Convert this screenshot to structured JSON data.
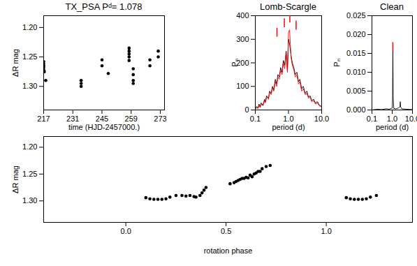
{
  "chart_data": [
    {
      "type": "scatter",
      "title": "TX_PSA Pᵈ= 1.078",
      "x_label": "time (HJD-2457000.)",
      "y_label": "ΔR mag",
      "marker": "circle",
      "color": "#000000",
      "xlim": [
        217,
        275
      ],
      "ylim": [
        1.34,
        1.18
      ],
      "xticks": [
        217,
        231,
        245,
        259,
        273
      ],
      "yticks": [
        {
          "value": 1.2,
          "label": "1.20"
        },
        {
          "value": 1.25,
          "label": "1.25"
        },
        {
          "value": 1.3,
          "label": "1.30"
        }
      ],
      "x": [
        217,
        217,
        217,
        217,
        217,
        217.3,
        218,
        235,
        235,
        235,
        245,
        245,
        248,
        258,
        258,
        258,
        258,
        258,
        260,
        260,
        260,
        260,
        268,
        268,
        272,
        272
      ],
      "values": [
        1.258,
        1.262,
        1.265,
        1.268,
        1.272,
        1.275,
        1.29,
        1.29,
        1.295,
        1.3,
        1.255,
        1.265,
        1.278,
        1.235,
        1.24,
        1.245,
        1.25,
        1.256,
        1.27,
        1.28,
        1.29,
        1.295,
        1.255,
        1.265,
        1.24,
        1.25
      ]
    },
    {
      "type": "line",
      "title": "Lomb-Scargle",
      "x_label": "period (d)",
      "y_label": "Pₙ",
      "log": "x",
      "xlim": [
        0.1,
        10
      ],
      "ylim": [
        0,
        400
      ],
      "xticks": [
        {
          "value": 0.1,
          "label": "0.1"
        },
        {
          "value": 1,
          "label": "1.0"
        },
        {
          "value": 10,
          "label": "10.0"
        }
      ],
      "yticks": [
        0,
        100,
        200,
        300,
        400
      ],
      "x": [
        0.1,
        0.11,
        0.12,
        0.13,
        0.14,
        0.15,
        0.17,
        0.19,
        0.2,
        0.22,
        0.25,
        0.27,
        0.3,
        0.33,
        0.36,
        0.4,
        0.44,
        0.48,
        0.53,
        0.58,
        0.64,
        0.7,
        0.77,
        0.85,
        0.93,
        1.0,
        1.08,
        1.2,
        1.3,
        1.45,
        1.6,
        1.8,
        2.0,
        2.2,
        2.5,
        2.8,
        3.2,
        3.6,
        4.0,
        4.5,
        5.0,
        5.7,
        6.5,
        7.5,
        8.5,
        10.0
      ],
      "series": [
        {
          "color": "#000000",
          "values": [
            5,
            15,
            8,
            25,
            12,
            30,
            20,
            45,
            35,
            60,
            50,
            80,
            70,
            100,
            85,
            130,
            110,
            150,
            140,
            180,
            160,
            210,
            190,
            250,
            170,
            300,
            280,
            230,
            200,
            180,
            150,
            160,
            120,
            130,
            90,
            100,
            70,
            80,
            55,
            60,
            40,
            45,
            30,
            35,
            20,
            15
          ]
        },
        {
          "color": "#ff0000",
          "values": [
            3,
            10,
            6,
            20,
            10,
            25,
            18,
            40,
            30,
            55,
            45,
            75,
            65,
            95,
            80,
            120,
            100,
            140,
            130,
            170,
            150,
            200,
            175,
            240,
            160,
            330,
            340,
            220,
            190,
            170,
            140,
            150,
            110,
            120,
            80,
            90,
            65,
            70,
            50,
            55,
            35,
            40,
            25,
            30,
            18,
            12
          ]
        }
      ],
      "peaks": {
        "color": "#ff0000",
        "x": [
          0.45,
          0.75,
          1.1,
          1.7
        ],
        "y": [
          330,
          370,
          390,
          360
        ]
      }
    },
    {
      "type": "line",
      "title": "Clean",
      "x_label": "period (d)",
      "y_label": "Pₙ",
      "log": "x",
      "xlim": [
        0.1,
        10
      ],
      "ylim": [
        0,
        0.025
      ],
      "xticks": [
        {
          "value": 0.1,
          "label": "0.1"
        },
        {
          "value": 1,
          "label": "1.0"
        },
        {
          "value": 10,
          "label": "10.0"
        }
      ],
      "yticks": [
        {
          "value": 0,
          "label": "0.000"
        },
        {
          "value": 0.005,
          "label": "0.005"
        },
        {
          "value": 0.01,
          "label": "0.010"
        },
        {
          "value": 0.015,
          "label": "0.015"
        },
        {
          "value": 0.02,
          "label": "0.020"
        },
        {
          "value": 0.025,
          "label": "0.025"
        }
      ],
      "x": [
        0.1,
        0.2,
        0.3,
        0.5,
        0.7,
        0.9,
        1.0,
        1.04,
        1.078,
        1.12,
        1.2,
        1.5,
        2.0,
        2.4,
        2.5,
        2.6,
        3.0,
        5.0,
        10.0
      ],
      "series": [
        {
          "color": "#000000",
          "values": [
            0,
            0.0002,
            0.0001,
            0.0003,
            0.0002,
            0.0004,
            0.0005,
            0.003,
            0.016,
            0.003,
            0.0004,
            0.0003,
            0.0005,
            0.0008,
            0.0022,
            0.0008,
            0.0003,
            0.0002,
            0.0001
          ]
        }
      ],
      "peaks": {
        "color": "#ff0000",
        "x": [
          1.078
        ],
        "y": [
          0.0168
        ]
      }
    },
    {
      "type": "scatter",
      "x_label": "rotation phase",
      "y_label": "ΔR mag",
      "marker": "circle",
      "color": "#000000",
      "xlim": [
        -0.41,
        1.43
      ],
      "ylim": [
        1.34,
        1.18
      ],
      "xticks": [
        {
          "value": 0,
          "label": "0.0"
        },
        {
          "value": 0.5,
          "label": "0.5"
        },
        {
          "value": 1,
          "label": "1.0"
        }
      ],
      "yticks": [
        {
          "value": 1.2,
          "label": "1.20"
        },
        {
          "value": 1.25,
          "label": "1.25"
        },
        {
          "value": 1.3,
          "label": "1.30"
        }
      ],
      "x": [
        0.1,
        0.12,
        0.14,
        0.16,
        0.18,
        0.2,
        0.22,
        0.25,
        0.28,
        0.3,
        0.32,
        0.34,
        0.35,
        0.37,
        0.38,
        0.39,
        0.4,
        0.52,
        0.54,
        0.55,
        0.56,
        0.57,
        0.58,
        0.59,
        0.6,
        0.61,
        0.62,
        0.63,
        0.64,
        0.65,
        0.66,
        0.67,
        0.68,
        0.7,
        0.72,
        1.1,
        1.12,
        1.14,
        1.16,
        1.18,
        1.2,
        1.22,
        1.25
      ],
      "values": [
        1.294,
        1.296,
        1.297,
        1.297,
        1.297,
        1.296,
        1.293,
        1.29,
        1.29,
        1.291,
        1.29,
        1.292,
        1.293,
        1.29,
        1.285,
        1.28,
        1.275,
        1.268,
        1.266,
        1.264,
        1.262,
        1.26,
        1.258,
        1.258,
        1.256,
        1.257,
        1.252,
        1.255,
        1.25,
        1.248,
        1.245,
        1.245,
        1.24,
        1.236,
        1.234,
        1.294,
        1.296,
        1.297,
        1.297,
        1.297,
        1.296,
        1.293,
        1.29
      ]
    }
  ]
}
